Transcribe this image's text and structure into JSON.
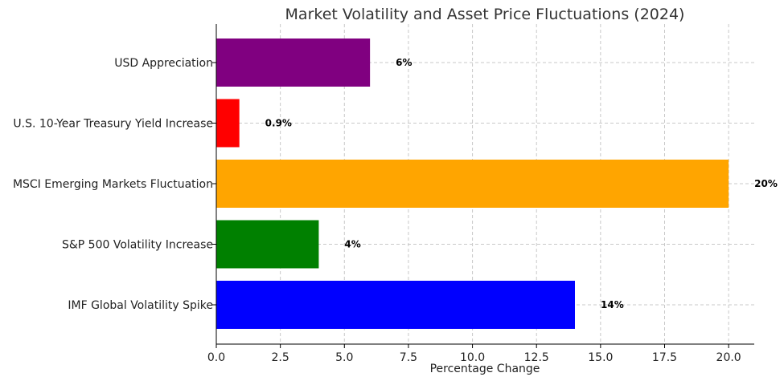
{
  "chart_data": {
    "type": "bar",
    "orientation": "horizontal",
    "title": "Market Volatility and Asset Price Fluctuations (2024)",
    "xlabel": "Percentage Change",
    "ylabel": "",
    "categories": [
      "IMF Global Volatility Spike",
      "S&P 500 Volatility Increase",
      "MSCI Emerging Markets Fluctuation",
      "U.S. 10-Year Treasury Yield Increase",
      "USD Appreciation"
    ],
    "values": [
      14,
      4,
      20,
      0.9,
      6
    ],
    "data_labels": [
      "14%",
      "4%",
      "20%",
      "0.9%",
      "6%"
    ],
    "colors": [
      "#0000ff",
      "#008000",
      "#ffa500",
      "#ff0000",
      "#800080"
    ],
    "xlim": [
      0,
      21
    ],
    "xticks": [
      0,
      2.5,
      5,
      7.5,
      10,
      12.5,
      15,
      17.5,
      20
    ],
    "xtick_labels": [
      "0.0",
      "2.5",
      "5.0",
      "7.5",
      "10.0",
      "12.5",
      "15.0",
      "17.5",
      "20.0"
    ],
    "grid": true
  }
}
